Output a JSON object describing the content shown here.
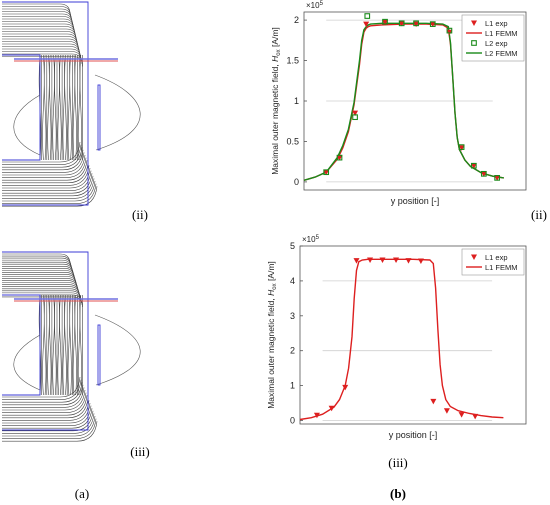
{
  "figure": {
    "labels": {
      "sim_top": "(ii)",
      "sim_bottom": "(iii)",
      "chart_top": "(ii)",
      "chart_bottom": "(iii)",
      "col_a": "(a)",
      "col_b": "(b)"
    }
  },
  "chart_data": [
    {
      "type": "line",
      "ylabel_prefix": "Maximal outer magnetic field, ",
      "ylabel_sym": "H",
      "ylabel_sub": "ox",
      "ylabel_unit": " [A/m]",
      "xlabel": "y position [-]",
      "y_multiplier_base": "×10",
      "y_multiplier_exp": "5",
      "xlim": [
        0,
        20
      ],
      "ylim": [
        -0.1,
        2.1
      ],
      "yticks": [
        0,
        0.5,
        1,
        1.5,
        2
      ],
      "ytick_labels": [
        "0",
        "0.5",
        "1",
        "1.5",
        "2"
      ],
      "gridlines_partial": [
        0,
        1,
        2
      ],
      "legend": "top-right",
      "colors": {
        "L1": "#dd1f1f",
        "L2": "#1a8a1a"
      },
      "series": [
        {
          "name": "L1 exp",
          "kind": "marker-triangle",
          "color": "#dd1f1f",
          "x": [
            2,
            3.2,
            4.6,
            5.6,
            7.3,
            8.8,
            10.1,
            11.6,
            13.1,
            14.2,
            15.3,
            16.2,
            17.4
          ],
          "y": [
            0.12,
            0.3,
            0.85,
            1.95,
            1.97,
            1.96,
            1.95,
            1.95,
            1.85,
            0.42,
            0.2,
            0.1,
            0.05
          ]
        },
        {
          "name": "L1 FEMM",
          "kind": "line",
          "color": "#dd1f1f",
          "x": [
            0,
            1,
            2,
            3,
            3.5,
            4,
            4.5,
            5,
            5.2,
            5.4,
            5.6,
            5.8,
            6,
            7,
            9,
            11,
            12.5,
            13,
            13.2,
            13.4,
            13.6,
            13.8,
            14,
            14.5,
            15,
            16,
            17,
            18
          ],
          "y": [
            0.02,
            0.06,
            0.12,
            0.28,
            0.42,
            0.62,
            0.95,
            1.45,
            1.7,
            1.85,
            1.9,
            1.92,
            1.93,
            1.94,
            1.95,
            1.95,
            1.94,
            1.9,
            1.7,
            1.3,
            0.85,
            0.55,
            0.4,
            0.27,
            0.19,
            0.11,
            0.07,
            0.05
          ]
        },
        {
          "name": "L2 exp",
          "kind": "marker-square",
          "color": "#1a8a1a",
          "x": [
            2,
            3.2,
            4.6,
            5.7,
            7.3,
            8.8,
            10.1,
            11.6,
            13.1,
            14.2,
            15.3,
            16.2,
            17.4
          ],
          "y": [
            0.12,
            0.3,
            0.8,
            2.05,
            1.98,
            1.96,
            1.96,
            1.95,
            1.87,
            0.43,
            0.2,
            0.1,
            0.05
          ]
        },
        {
          "name": "L2 FEMM",
          "kind": "line",
          "color": "#1a8a1a",
          "x": [
            0,
            1,
            2,
            3,
            3.5,
            4,
            4.5,
            5,
            5.2,
            5.4,
            5.6,
            5.8,
            6,
            7,
            9,
            11,
            12.5,
            13,
            13.2,
            13.4,
            13.6,
            13.8,
            14,
            14.5,
            15,
            16,
            17,
            18
          ],
          "y": [
            0.02,
            0.06,
            0.12,
            0.3,
            0.45,
            0.65,
            0.98,
            1.5,
            1.75,
            1.88,
            1.92,
            1.94,
            1.95,
            1.96,
            1.96,
            1.96,
            1.95,
            1.92,
            1.72,
            1.3,
            0.85,
            0.55,
            0.4,
            0.27,
            0.19,
            0.11,
            0.07,
            0.05
          ]
        }
      ]
    },
    {
      "type": "line",
      "ylabel_prefix": "Maximal outer magnetic field, ",
      "ylabel_sym": "H",
      "ylabel_sub": "ox",
      "ylabel_unit": " [A/m]",
      "xlabel": "y position [-]",
      "y_multiplier_base": "×10",
      "y_multiplier_exp": "5",
      "xlim": [
        0,
        20
      ],
      "ylim": [
        -0.1,
        5
      ],
      "yticks": [
        0,
        1,
        2,
        3,
        4,
        5
      ],
      "ytick_labels": [
        "0",
        "1",
        "2",
        "3",
        "4",
        "5"
      ],
      "gridlines_partial": [
        0,
        2,
        4
      ],
      "legend": "top-right",
      "colors": {
        "L1": "#dd1f1f"
      },
      "series": [
        {
          "name": "L1 exp",
          "kind": "marker-triangle",
          "color": "#dd1f1f",
          "x": [
            1.5,
            2.8,
            4.0,
            5.0,
            6.2,
            7.3,
            8.5,
            9.6,
            10.7,
            11.8,
            13.0,
            14.3,
            15.5
          ],
          "y": [
            0.15,
            0.35,
            0.95,
            4.58,
            4.6,
            4.6,
            4.6,
            4.58,
            4.57,
            0.55,
            0.28,
            0.17,
            0.12
          ]
        },
        {
          "name": "L1 FEMM",
          "kind": "line",
          "color": "#dd1f1f",
          "x": [
            0,
            1,
            2,
            3,
            3.5,
            4,
            4.3,
            4.6,
            4.8,
            5,
            5.2,
            5.5,
            6,
            8,
            10,
            11.5,
            11.8,
            12,
            12.2,
            12.4,
            12.6,
            12.9,
            13.3,
            14,
            15,
            16,
            17,
            18
          ],
          "y": [
            0.03,
            0.08,
            0.18,
            0.38,
            0.6,
            1.0,
            1.5,
            2.4,
            3.5,
            4.3,
            4.55,
            4.6,
            4.62,
            4.62,
            4.62,
            4.6,
            4.5,
            3.8,
            2.6,
            1.6,
            1.0,
            0.6,
            0.4,
            0.28,
            0.2,
            0.14,
            0.1,
            0.08
          ]
        }
      ]
    }
  ]
}
